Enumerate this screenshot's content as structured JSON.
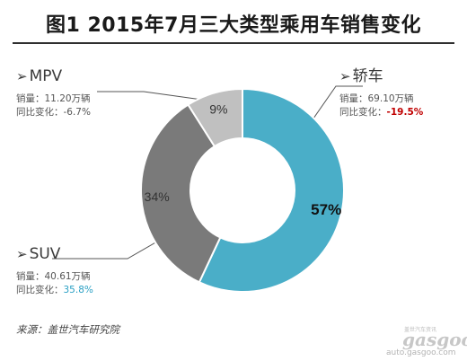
{
  "title": "图1  2015年7月三大类型乘用车销售变化",
  "source": "来源：盖世汽车研究院",
  "watermark": {
    "logo": "gasgoo",
    "small": "盖世汽车资讯",
    "url": "auto.gasgoo.com"
  },
  "annotations": {
    "mpv": {
      "name": "MPV",
      "sales": "销量：11.20万辆",
      "yoy_label": "同比变化：",
      "yoy_value": "-6.7%"
    },
    "sedan": {
      "name": "轿车",
      "sales": "销量：69.10万辆",
      "yoy_label": "同比变化：",
      "yoy_value": "-19.5%"
    },
    "suv": {
      "name": "SUV",
      "sales": "销量：40.61万辆",
      "yoy_label": "同比变化：",
      "yoy_value": "35.8%"
    }
  },
  "colors": {
    "sedan": "#4aaec8",
    "suv": "#7a7a7a",
    "mpv": "#c0c0c0",
    "title_rule": "#2f2f2f",
    "negative": "#c00000",
    "positive": "#2aa0c4"
  },
  "chart_data": {
    "type": "pie",
    "style": "donut",
    "title": "图1  2015年7月三大类型乘用车销售变化",
    "slices": [
      {
        "name": "轿车",
        "value": 57,
        "label": "57%"
      },
      {
        "name": "SUV",
        "value": 34,
        "label": "34%"
      },
      {
        "name": "MPV",
        "value": 9,
        "label": "9%"
      }
    ]
  }
}
